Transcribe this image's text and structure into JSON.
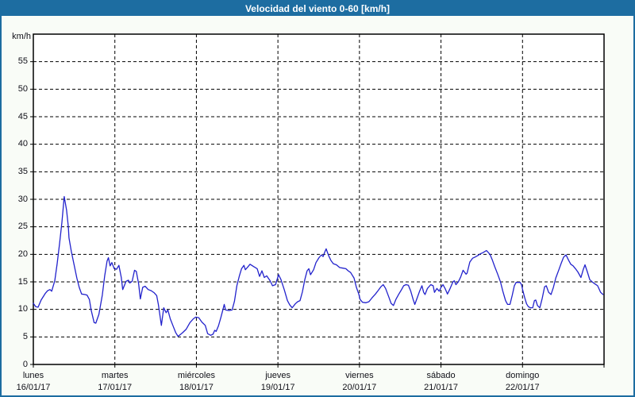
{
  "title_bar": {
    "title": "Velocidad del viento 0-60 [km/h]",
    "bg_color": "#1d6da1",
    "text_color": "#ffffff"
  },
  "frame": {
    "background_color": "#f9fcf7",
    "border_color": "#1d6da1",
    "plot_background": "#ffffff",
    "plot_border_color": "#000000",
    "grid_color": "#000000",
    "grid_style": "dashed"
  },
  "chart_data": {
    "type": "line",
    "title": "Velocidad del viento 0-60 [km/h]",
    "ylabel": "km/h",
    "unit_label": "km/h",
    "ylim": [
      0,
      60
    ],
    "yticks": [
      0,
      5,
      10,
      15,
      20,
      25,
      30,
      35,
      40,
      45,
      50,
      55
    ],
    "x_range_hours": [
      0,
      168
    ],
    "grid": "dashed",
    "legend": "none",
    "line_color": "#2222cc",
    "days": [
      {
        "name": "lunes",
        "date": "16/01/17"
      },
      {
        "name": "martes",
        "date": "17/01/17"
      },
      {
        "name": "miércoles",
        "date": "18/01/17"
      },
      {
        "name": "jueves",
        "date": "19/01/17"
      },
      {
        "name": "viernes",
        "date": "20/01/17"
      },
      {
        "name": "sábado",
        "date": "21/01/17"
      },
      {
        "name": "domingo",
        "date": "22/01/17"
      }
    ],
    "series": [
      {
        "name": "Velocidad del viento [km/h]",
        "points": [
          [
            0.0,
            11.1
          ],
          [
            0.7,
            10.5
          ],
          [
            1.4,
            10.4
          ],
          [
            2.3,
            11.7
          ],
          [
            3.5,
            12.9
          ],
          [
            4.2,
            13.4
          ],
          [
            4.9,
            13.6
          ],
          [
            5.4,
            13.3
          ],
          [
            6.3,
            15.2
          ],
          [
            7.0,
            18.3
          ],
          [
            7.7,
            21.9
          ],
          [
            8.4,
            25.8
          ],
          [
            9.1,
            30.5
          ],
          [
            9.8,
            28.0
          ],
          [
            10.3,
            25.0
          ],
          [
            10.5,
            23.0
          ],
          [
            11.2,
            20.5
          ],
          [
            12.1,
            17.8
          ],
          [
            12.8,
            15.7
          ],
          [
            13.5,
            14.0
          ],
          [
            14.2,
            12.8
          ],
          [
            15.1,
            12.7
          ],
          [
            15.8,
            12.6
          ],
          [
            16.5,
            11.8
          ],
          [
            17.0,
            9.9
          ],
          [
            17.9,
            7.6
          ],
          [
            18.4,
            7.5
          ],
          [
            19.3,
            9.1
          ],
          [
            20.3,
            12.6
          ],
          [
            21.0,
            16.1
          ],
          [
            21.7,
            18.8
          ],
          [
            22.1,
            19.4
          ],
          [
            22.6,
            17.9
          ],
          [
            23.1,
            18.5
          ],
          [
            23.8,
            17.4
          ],
          [
            24.5,
            17.3
          ],
          [
            25.2,
            18.0
          ],
          [
            25.9,
            15.8
          ],
          [
            26.3,
            13.6
          ],
          [
            27.3,
            15.1
          ],
          [
            28.0,
            15.3
          ],
          [
            28.4,
            14.8
          ],
          [
            29.1,
            15.1
          ],
          [
            29.8,
            17.1
          ],
          [
            30.3,
            16.9
          ],
          [
            31.0,
            14.6
          ],
          [
            31.5,
            11.9
          ],
          [
            32.2,
            14.0
          ],
          [
            32.9,
            14.2
          ],
          [
            33.8,
            13.6
          ],
          [
            34.7,
            13.4
          ],
          [
            35.6,
            13.0
          ],
          [
            36.3,
            12.5
          ],
          [
            36.8,
            10.9
          ],
          [
            37.7,
            7.1
          ],
          [
            38.4,
            10.3
          ],
          [
            39.1,
            9.4
          ],
          [
            39.6,
            9.9
          ],
          [
            40.3,
            8.3
          ],
          [
            41.2,
            6.9
          ],
          [
            41.9,
            5.8
          ],
          [
            42.6,
            5.1
          ],
          [
            43.8,
            5.7
          ],
          [
            45.0,
            6.4
          ],
          [
            46.1,
            7.6
          ],
          [
            47.1,
            8.3
          ],
          [
            47.8,
            8.6
          ],
          [
            48.7,
            8.5
          ],
          [
            49.6,
            7.7
          ],
          [
            50.6,
            7.1
          ],
          [
            51.3,
            5.6
          ],
          [
            52.2,
            5.3
          ],
          [
            52.9,
            5.5
          ],
          [
            53.4,
            6.2
          ],
          [
            53.8,
            6.0
          ],
          [
            54.5,
            7.0
          ],
          [
            55.2,
            8.5
          ],
          [
            55.7,
            9.7
          ],
          [
            56.2,
            10.9
          ],
          [
            56.6,
            9.9
          ],
          [
            57.6,
            9.8
          ],
          [
            58.5,
            9.9
          ],
          [
            59.2,
            11.5
          ],
          [
            59.9,
            14.3
          ],
          [
            60.6,
            16.0
          ],
          [
            61.3,
            17.4
          ],
          [
            62.0,
            18.0
          ],
          [
            62.4,
            17.2
          ],
          [
            63.1,
            17.7
          ],
          [
            63.8,
            18.2
          ],
          [
            64.8,
            17.8
          ],
          [
            65.9,
            17.4
          ],
          [
            66.6,
            16.0
          ],
          [
            67.3,
            17.0
          ],
          [
            68.0,
            15.8
          ],
          [
            68.7,
            16.1
          ],
          [
            69.7,
            15.2
          ],
          [
            70.4,
            14.3
          ],
          [
            71.3,
            14.5
          ],
          [
            72.2,
            16.3
          ],
          [
            72.9,
            15.4
          ],
          [
            73.9,
            13.5
          ],
          [
            74.8,
            11.6
          ],
          [
            75.5,
            10.8
          ],
          [
            76.2,
            10.3
          ],
          [
            77.1,
            11.0
          ],
          [
            77.8,
            11.4
          ],
          [
            78.5,
            11.6
          ],
          [
            79.2,
            13.2
          ],
          [
            79.9,
            15.4
          ],
          [
            80.6,
            17.0
          ],
          [
            81.1,
            17.4
          ],
          [
            81.6,
            16.3
          ],
          [
            82.5,
            17.2
          ],
          [
            83.2,
            18.5
          ],
          [
            84.1,
            19.4
          ],
          [
            84.8,
            19.9
          ],
          [
            85.3,
            19.6
          ],
          [
            85.7,
            20.3
          ],
          [
            86.2,
            21.0
          ],
          [
            86.9,
            19.8
          ],
          [
            87.6,
            18.9
          ],
          [
            88.3,
            18.3
          ],
          [
            89.2,
            18.1
          ],
          [
            90.2,
            17.6
          ],
          [
            91.1,
            17.5
          ],
          [
            92.0,
            17.4
          ],
          [
            92.7,
            17.0
          ],
          [
            93.4,
            16.7
          ],
          [
            94.4,
            15.7
          ],
          [
            95.1,
            14.0
          ],
          [
            95.8,
            12.8
          ],
          [
            96.2,
            11.8
          ],
          [
            96.9,
            11.3
          ],
          [
            97.9,
            11.2
          ],
          [
            98.8,
            11.4
          ],
          [
            99.7,
            12.1
          ],
          [
            100.7,
            12.8
          ],
          [
            101.6,
            13.5
          ],
          [
            102.3,
            14.1
          ],
          [
            103.0,
            14.5
          ],
          [
            103.7,
            13.8
          ],
          [
            104.6,
            12.3
          ],
          [
            105.3,
            11.1
          ],
          [
            106.0,
            10.7
          ],
          [
            106.7,
            11.8
          ],
          [
            107.6,
            12.8
          ],
          [
            108.3,
            13.5
          ],
          [
            109.0,
            14.3
          ],
          [
            109.7,
            14.5
          ],
          [
            110.4,
            14.4
          ],
          [
            111.1,
            13.3
          ],
          [
            111.8,
            11.8
          ],
          [
            112.3,
            10.9
          ],
          [
            113.0,
            12.1
          ],
          [
            113.7,
            13.3
          ],
          [
            114.4,
            14.3
          ],
          [
            114.9,
            13.1
          ],
          [
            115.3,
            12.7
          ],
          [
            116.0,
            13.8
          ],
          [
            117.0,
            14.5
          ],
          [
            117.7,
            14.3
          ],
          [
            118.1,
            13.1
          ],
          [
            118.8,
            13.8
          ],
          [
            119.5,
            13.3
          ],
          [
            120.0,
            14.0
          ],
          [
            120.6,
            14.5
          ],
          [
            121.2,
            13.8
          ],
          [
            121.9,
            12.8
          ],
          [
            122.7,
            13.8
          ],
          [
            123.5,
            15.0
          ],
          [
            123.9,
            15.2
          ],
          [
            124.4,
            14.5
          ],
          [
            125.1,
            15.0
          ],
          [
            125.8,
            15.9
          ],
          [
            126.5,
            17.1
          ],
          [
            127.4,
            16.4
          ],
          [
            127.7,
            16.6
          ],
          [
            128.5,
            18.6
          ],
          [
            129.3,
            19.3
          ],
          [
            130.0,
            19.5
          ],
          [
            130.9,
            19.8
          ],
          [
            131.6,
            20.1
          ],
          [
            132.3,
            20.3
          ],
          [
            133.4,
            20.7
          ],
          [
            134.4,
            20.0
          ],
          [
            135.1,
            19.0
          ],
          [
            135.8,
            17.8
          ],
          [
            136.7,
            16.4
          ],
          [
            137.5,
            15.0
          ],
          [
            138.2,
            13.3
          ],
          [
            139.0,
            11.6
          ],
          [
            139.6,
            10.9
          ],
          [
            140.3,
            10.9
          ],
          [
            141.0,
            12.6
          ],
          [
            141.6,
            14.3
          ],
          [
            142.1,
            14.9
          ],
          [
            143.3,
            14.9
          ],
          [
            143.7,
            14.5
          ],
          [
            144.1,
            13.4
          ],
          [
            144.6,
            12.2
          ],
          [
            145.2,
            11.0
          ],
          [
            145.7,
            10.5
          ],
          [
            146.3,
            10.3
          ],
          [
            147.0,
            10.3
          ],
          [
            147.5,
            11.6
          ],
          [
            147.9,
            11.7
          ],
          [
            148.4,
            10.7
          ],
          [
            149.1,
            10.3
          ],
          [
            149.8,
            12.0
          ],
          [
            150.5,
            14.1
          ],
          [
            151.0,
            14.3
          ],
          [
            151.7,
            13.1
          ],
          [
            152.4,
            12.7
          ],
          [
            153.1,
            14.0
          ],
          [
            153.8,
            15.7
          ],
          [
            154.7,
            17.2
          ],
          [
            155.4,
            18.4
          ],
          [
            156.1,
            19.5
          ],
          [
            156.8,
            19.9
          ],
          [
            157.5,
            19.0
          ],
          [
            158.2,
            18.2
          ],
          [
            158.9,
            17.9
          ],
          [
            159.6,
            17.4
          ],
          [
            160.3,
            16.8
          ],
          [
            161.2,
            15.8
          ],
          [
            161.9,
            17.3
          ],
          [
            162.4,
            18.1
          ],
          [
            163.1,
            16.8
          ],
          [
            163.8,
            15.4
          ],
          [
            164.7,
            14.9
          ],
          [
            165.4,
            14.6
          ],
          [
            166.1,
            14.3
          ],
          [
            167.0,
            13.1
          ],
          [
            167.7,
            12.7
          ]
        ]
      }
    ]
  }
}
